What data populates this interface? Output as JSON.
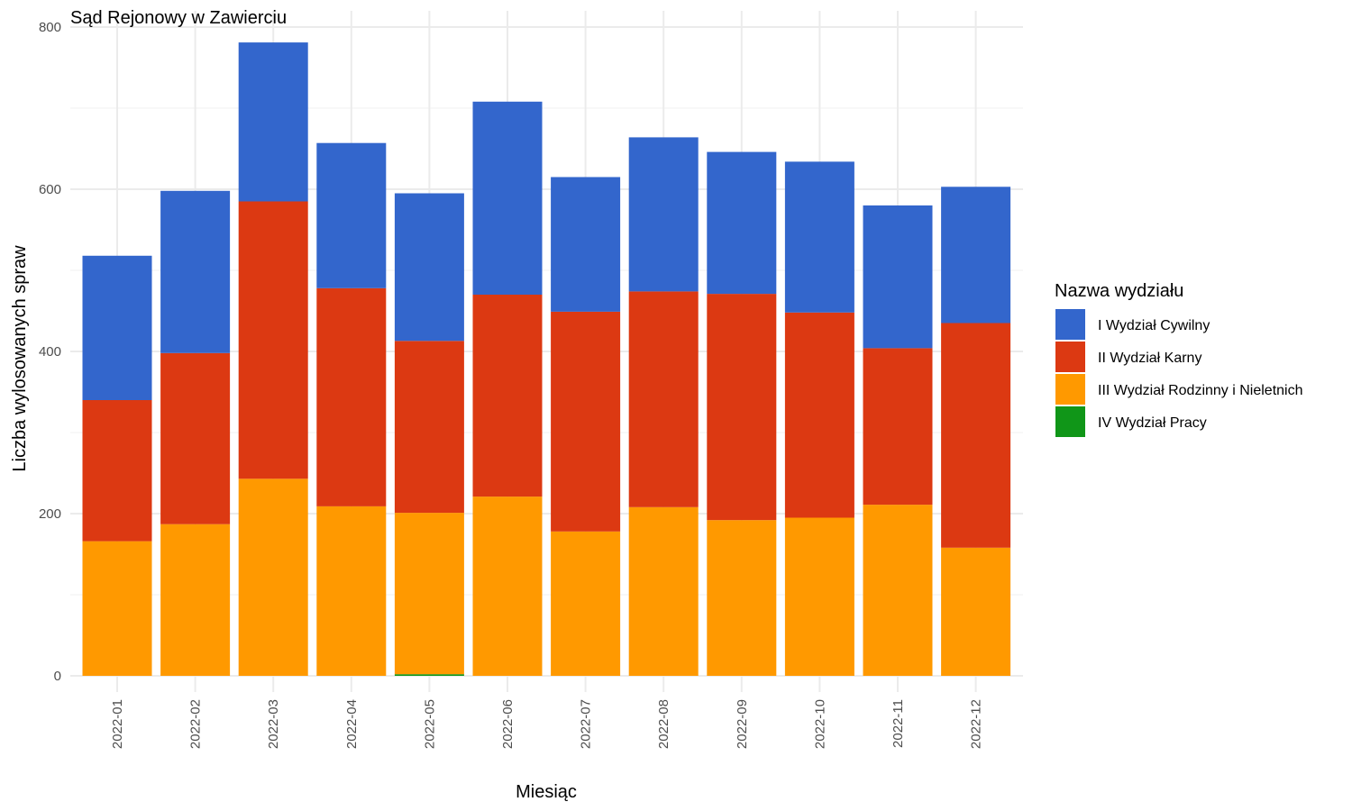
{
  "chart_data": {
    "type": "bar",
    "stacked": true,
    "title": "Sąd Rejonowy w Zawierciu",
    "xlabel": "Miesiąc",
    "ylabel": "Liczba wylosowanych spraw",
    "ylim": [
      0,
      800
    ],
    "yticks": [
      "0",
      "200",
      "400",
      "600",
      "800"
    ],
    "grid": true,
    "legend": {
      "title": "Nazwa wydziału",
      "position": "right"
    },
    "categories": [
      "2022-01",
      "2022-02",
      "2022-03",
      "2022-04",
      "2022-05",
      "2022-06",
      "2022-07",
      "2022-08",
      "2022-09",
      "2022-10",
      "2022-11",
      "2022-12"
    ],
    "series": [
      {
        "name": "IV Wydział Pracy",
        "color": "#109618",
        "values": [
          0,
          0,
          0,
          0,
          2,
          0,
          0,
          0,
          0,
          0,
          0,
          0
        ]
      },
      {
        "name": "III Wydział Rodzinny i Nieletnich",
        "color": "#FF9900",
        "values": [
          166,
          187,
          243,
          209,
          199,
          221,
          178,
          208,
          192,
          195,
          211,
          158
        ]
      },
      {
        "name": "II Wydział Karny",
        "color": "#DC3912",
        "values": [
          174,
          211,
          342,
          269,
          212,
          249,
          271,
          266,
          279,
          253,
          193,
          277
        ]
      },
      {
        "name": "I Wydział Cywilny",
        "color": "#3366CC",
        "values": [
          178,
          200,
          196,
          179,
          182,
          238,
          166,
          190,
          175,
          186,
          176,
          168
        ]
      }
    ],
    "legend_order": [
      "I Wydział Cywilny",
      "II Wydział Karny",
      "III Wydział Rodzinny i Nieletnich",
      "IV Wydział Pracy"
    ]
  }
}
